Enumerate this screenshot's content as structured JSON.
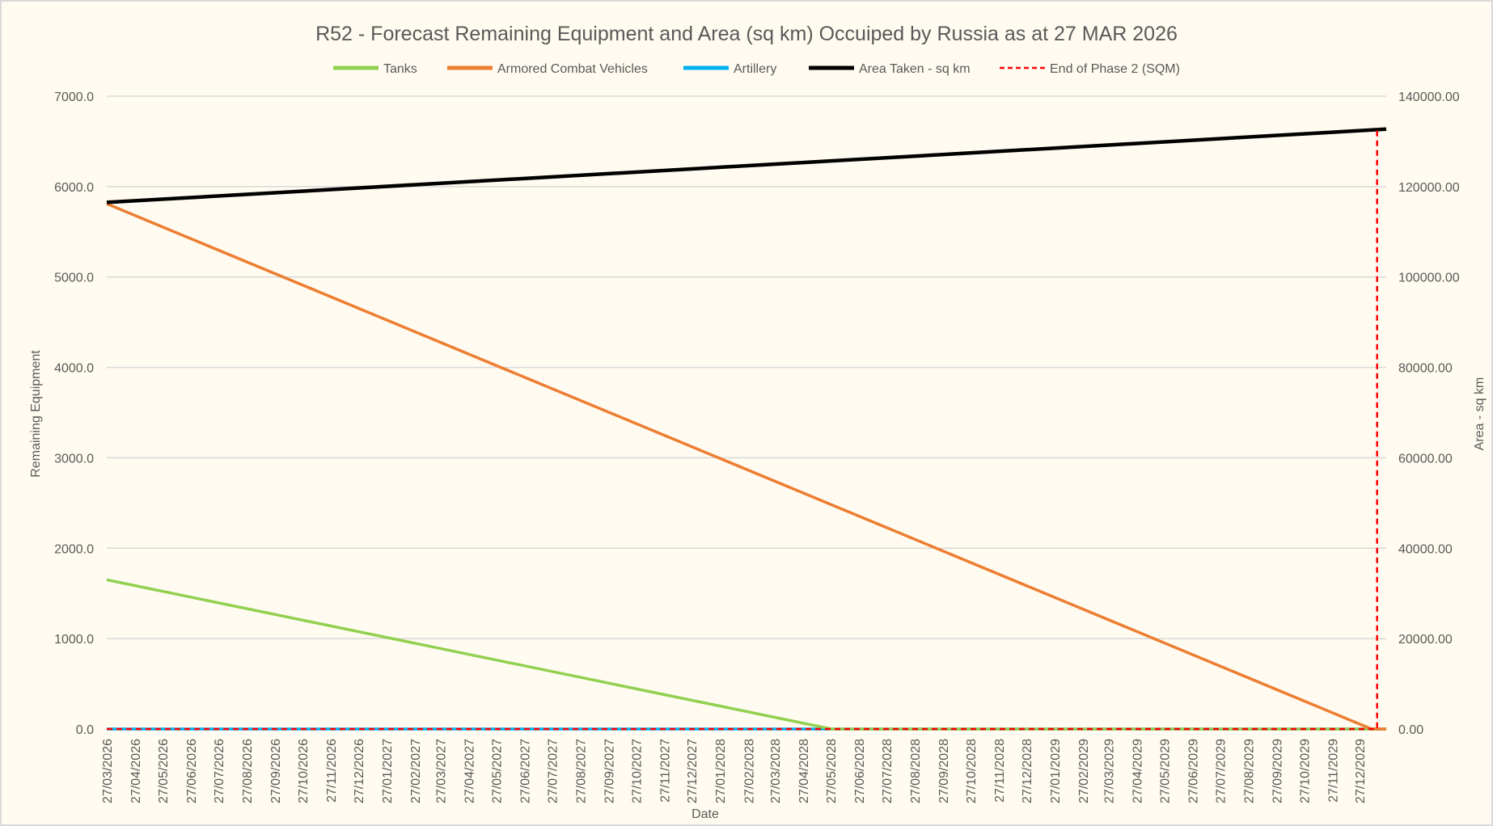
{
  "chart_data": {
    "type": "line",
    "title": "R52 - Forecast Remaining Equipment and Area (sq km) Occuiped by Russia as at 27 MAR 2026",
    "xlabel": "Date",
    "ylabel": "Remaining Equipment",
    "y2label": "Area - sq km",
    "ylim": [
      0,
      7000
    ],
    "y2lim": [
      0,
      140000
    ],
    "xlim": [
      "2026-03-27",
      "2030-01-25"
    ],
    "y_ticks": [
      "0.0",
      "1000.0",
      "2000.0",
      "3000.0",
      "4000.0",
      "5000.0",
      "6000.0",
      "7000.0"
    ],
    "y2_ticks": [
      "0.00",
      "20000.00",
      "40000.00",
      "60000.00",
      "80000.00",
      "100000.00",
      "120000.00",
      "140000.00"
    ],
    "x_ticks": [
      "27/03/2026",
      "27/04/2026",
      "27/05/2026",
      "27/06/2026",
      "27/07/2026",
      "27/08/2026",
      "27/09/2026",
      "27/10/2026",
      "27/11/2026",
      "27/12/2026",
      "27/01/2027",
      "27/02/2027",
      "27/03/2027",
      "27/04/2027",
      "27/05/2027",
      "27/06/2027",
      "27/07/2027",
      "27/08/2027",
      "27/09/2027",
      "27/10/2027",
      "27/11/2027",
      "27/12/2027",
      "27/01/2028",
      "27/02/2028",
      "27/03/2028",
      "27/04/2028",
      "27/05/2028",
      "27/06/2028",
      "27/07/2028",
      "27/08/2028",
      "27/09/2028",
      "27/10/2028",
      "27/11/2028",
      "27/12/2028",
      "27/01/2029",
      "27/02/2029",
      "27/03/2029",
      "27/04/2029",
      "27/05/2029",
      "27/06/2029",
      "27/07/2029",
      "27/08/2029",
      "27/09/2029",
      "27/10/2029",
      "27/11/2029",
      "27/12/2029"
    ],
    "grid": true,
    "legend": "top",
    "series": [
      {
        "name": "Tanks",
        "color": "#92d050",
        "axis": "left",
        "style": "solid",
        "points": [
          [
            "2026-03-27",
            1650
          ],
          [
            "2028-05-28",
            0
          ],
          [
            "2030-01-25",
            0
          ]
        ]
      },
      {
        "name": "Armored Combat Vehicles",
        "color": "#ed7d31",
        "axis": "left",
        "style": "solid",
        "points": [
          [
            "2026-03-27",
            5810
          ],
          [
            "2030-01-09",
            0
          ],
          [
            "2030-01-25",
            0
          ]
        ]
      },
      {
        "name": "Artillery",
        "color": "#00b0f0",
        "axis": "left",
        "style": "solid",
        "points": [
          [
            "2026-03-27",
            0
          ],
          [
            "2030-01-25",
            0
          ]
        ]
      },
      {
        "name": "Area Taken - sq km",
        "color": "#000000",
        "axis": "right",
        "style": "solid",
        "points": [
          [
            "2026-03-27",
            116500
          ],
          [
            "2030-01-25",
            132700
          ]
        ]
      },
      {
        "name": "End of Phase 2 (SQM)",
        "color": "#ff0000",
        "axis": "right",
        "style": "dashed",
        "points": [
          [
            "2026-03-27",
            0
          ],
          [
            "2030-01-15",
            0
          ],
          [
            "2030-01-15",
            132700
          ]
        ]
      }
    ]
  }
}
